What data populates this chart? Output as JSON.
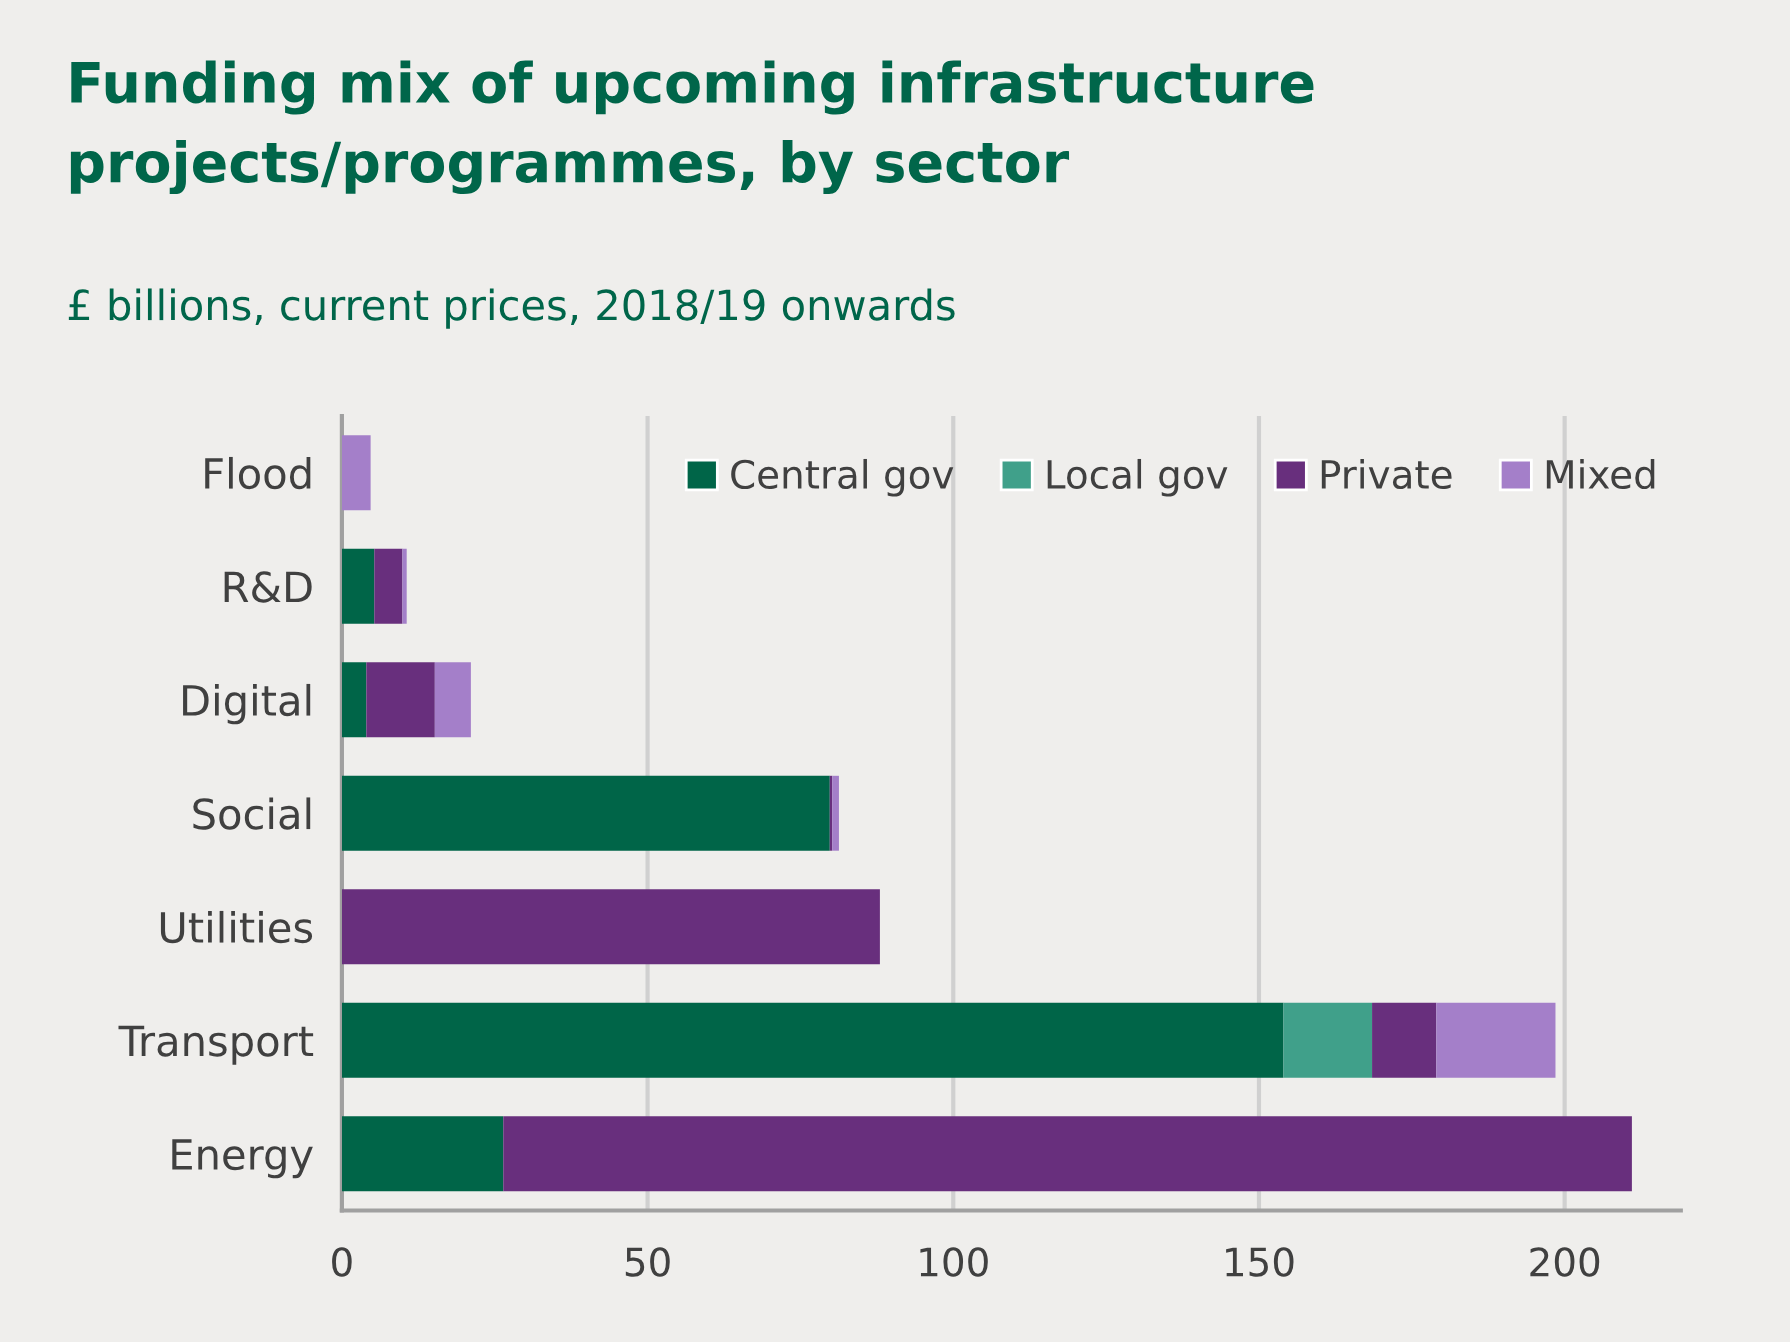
{
  "chart_data": {
    "type": "bar",
    "orientation": "horizontal",
    "stacked": true,
    "title": "Funding mix of upcoming infrastructure projects/programmes, by sector",
    "subtitle": "£ billions, current prices, 2018/19 onwards",
    "categories": [
      "Flood",
      "R&D",
      "Digital",
      "Social",
      "Utilities",
      "Transport",
      "Energy"
    ],
    "series": [
      {
        "name": "Central gov",
        "color": "#006548",
        "values": [
          null,
          5.3,
          4,
          79.8,
          null,
          154,
          26.4
        ]
      },
      {
        "name": "Local gov",
        "color": "#40a08a",
        "values": [
          null,
          null,
          null,
          null,
          null,
          14.5,
          null
        ]
      },
      {
        "name": "Private",
        "color": "#682f7d",
        "values": [
          null,
          4.6,
          11.2,
          0.4,
          88,
          10.5,
          184.6
        ]
      },
      {
        "name": "Mixed",
        "color": "#a47fc9",
        "values": [
          4.7,
          0.7,
          5.9,
          1.1,
          null,
          19.5,
          null
        ]
      }
    ],
    "xlim": [
      0,
      219
    ],
    "xticks": [
      0,
      50,
      100,
      150,
      200
    ],
    "grid": "x",
    "legend": "top"
  }
}
